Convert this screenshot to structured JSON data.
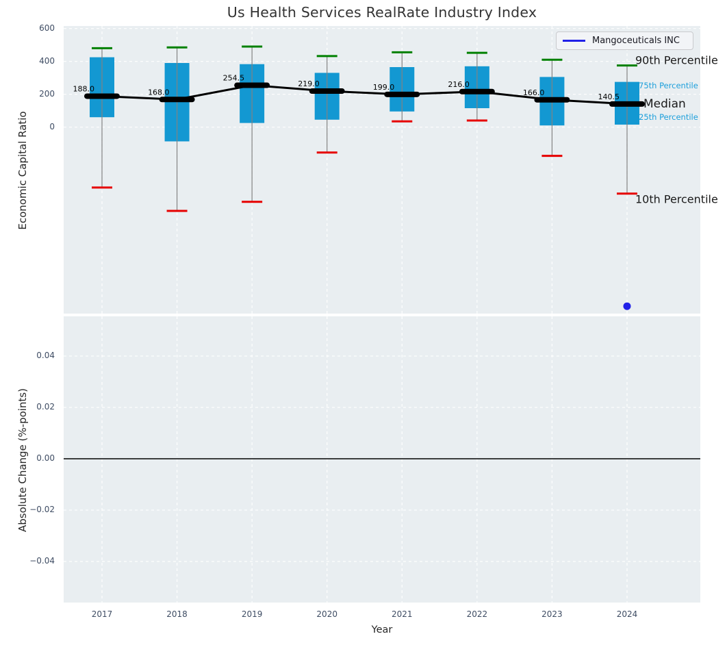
{
  "title": "Us Health Services RealRate Industry Index",
  "legend": {
    "label": "Mangoceuticals INC",
    "line_color": "#2121e8"
  },
  "annotations": {
    "p90": "90th Percentile",
    "p75": "75th Percentile",
    "median": "Median",
    "p25": "25th Percentile",
    "p10": "10th Percentile"
  },
  "colors": {
    "box_fill": "#1398d2",
    "whisker": "#828282",
    "cap_p90": "#008000",
    "cap_p10": "#e60000",
    "median": "#000000",
    "company_point": "#2121e8",
    "plot_background": "#e9eef1",
    "gridline": "#ffffff",
    "tick_text": "#3e4c63",
    "percentile_label_blue": "#1c9fdb"
  },
  "chart_data": [
    {
      "type": "boxplot",
      "title": "Us Health Services RealRate Industry Index",
      "xlabel": "Year",
      "ylabel": "Economic Capital Ratio",
      "categories": [
        "2017",
        "2018",
        "2019",
        "2020",
        "2021",
        "2022",
        "2023",
        "2024"
      ],
      "ylim": [
        -1135,
        615
      ],
      "ytick_labels": [
        "600",
        "400",
        "200",
        "0"
      ],
      "ytick_values": [
        600,
        400,
        200,
        0
      ],
      "grid": true,
      "legend_position": "upper right",
      "series": [
        {
          "name": "median",
          "values": [
            188.0,
            168.0,
            254.5,
            219.0,
            199.0,
            216.0,
            166.0,
            140.5
          ]
        },
        {
          "name": "25th percentile (box bottom)",
          "values": [
            60,
            -87,
            25,
            45,
            95,
            115,
            10,
            15
          ]
        },
        {
          "name": "75th percentile (box top)",
          "values": [
            425,
            390,
            383,
            330,
            365,
            370,
            305,
            275
          ]
        },
        {
          "name": "10th percentile (lower whisker)",
          "values": [
            -368,
            -510,
            -455,
            -155,
            35,
            40,
            -175,
            -405
          ]
        },
        {
          "name": "90th percentile (upper whisker)",
          "values": [
            480,
            485,
            490,
            432,
            455,
            452,
            410,
            375
          ]
        }
      ],
      "median_labels": [
        "188.0",
        "168.0",
        "254.5",
        "219.0",
        "199.0",
        "216.0",
        "166.0",
        "140.5"
      ],
      "points": [
        {
          "name": "Mangoceuticals INC",
          "x": "2024",
          "y": -1090
        }
      ]
    },
    {
      "type": "line",
      "xlabel": "Year",
      "ylabel": "Absolute Change (%-points)",
      "categories": [
        "2017",
        "2018",
        "2019",
        "2020",
        "2021",
        "2022",
        "2023",
        "2024"
      ],
      "ylim": [
        -0.0555,
        0.0555
      ],
      "ytick_labels": [
        "0.04",
        "0.02",
        "0.00",
        "−0.02",
        "−0.04"
      ],
      "ytick_values": [
        0.04,
        0.02,
        0.0,
        -0.02,
        -0.04
      ],
      "grid": true,
      "zero_line": 0.0,
      "series": []
    }
  ]
}
